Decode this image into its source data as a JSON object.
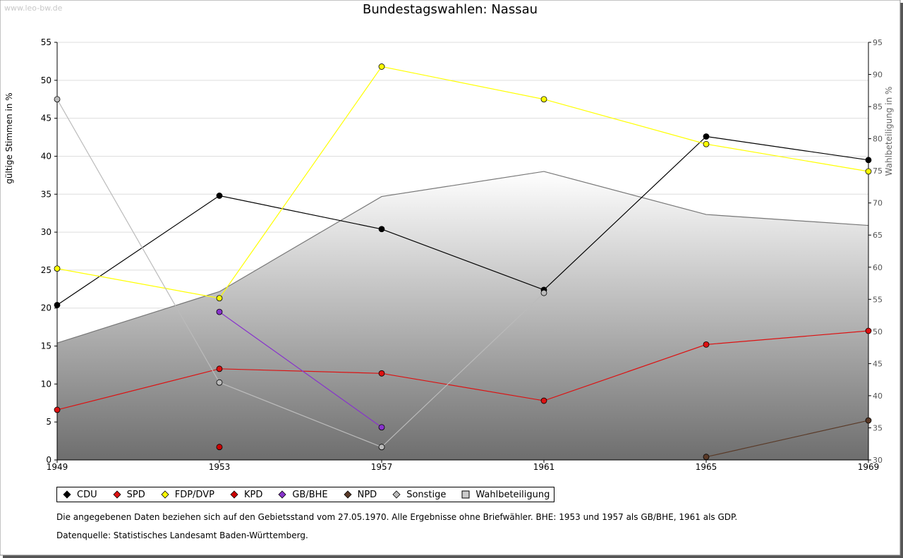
{
  "watermark": "www.leo-bw.de",
  "footnote": "Die angegebenen Daten beziehen sich auf den Gebietsstand vom 27.05.1970. Alle Ergebnisse ohne Briefwähler. BHE: 1953 und 1957 als GB/BHE, 1961 als GDP.",
  "source": "Datenquelle: Statistisches Landesamt Baden-Württemberg.",
  "colors": {
    "background": "#ffffff",
    "grid": "#dddddd",
    "frame_shadow": "#555555",
    "area_top": "#ffffff",
    "area_bottom": "#6e6e6e",
    "area_line": "#777777"
  },
  "chart_data": {
    "type": "line",
    "title": "Bundestagswahlen: Nassau",
    "xlabel": "",
    "ylabel": "gültige Stimmen in %",
    "y2label": "Wahlbeteiligung in %",
    "x": [
      1949,
      1953,
      1957,
      1961,
      1965,
      1969
    ],
    "xlim": [
      1949,
      1969
    ],
    "ylim": [
      0,
      55
    ],
    "y2lim": [
      30,
      95
    ],
    "yticks": [
      0,
      5,
      10,
      15,
      20,
      25,
      30,
      35,
      40,
      45,
      50,
      55
    ],
    "y2ticks": [
      30,
      35,
      40,
      45,
      50,
      55,
      60,
      65,
      70,
      75,
      80,
      85,
      90,
      95
    ],
    "grid": true,
    "legend_position": "bottom",
    "series": [
      {
        "name": "CDU",
        "color": "#000000",
        "values": [
          20.4,
          34.8,
          30.4,
          22.4,
          42.6,
          39.5
        ]
      },
      {
        "name": "SPD",
        "color": "#dd1111",
        "values": [
          6.6,
          12.0,
          11.4,
          7.8,
          15.2,
          17.0
        ]
      },
      {
        "name": "FDP/DVP",
        "color": "#ffff00",
        "values": [
          25.2,
          21.3,
          51.8,
          47.5,
          41.6,
          38.0
        ]
      },
      {
        "name": "KPD",
        "color": "#cc0000",
        "values": [
          null,
          1.7,
          null,
          null,
          null,
          null
        ]
      },
      {
        "name": "GB/BHE",
        "color": "#8833cc",
        "values": [
          null,
          19.5,
          4.3,
          null,
          null,
          null
        ]
      },
      {
        "name": "NPD",
        "color": "#5a3a28",
        "values": [
          null,
          null,
          null,
          null,
          0.4,
          5.2
        ]
      },
      {
        "name": "Sonstige",
        "color": "#bbbbbb",
        "values": [
          47.5,
          10.2,
          1.7,
          22.0,
          null,
          null
        ]
      }
    ],
    "turnout": {
      "name": "Wahlbeteiligung",
      "color": "#cccccc",
      "values": [
        48.2,
        56.2,
        71.0,
        74.9,
        68.2,
        66.5
      ]
    }
  }
}
